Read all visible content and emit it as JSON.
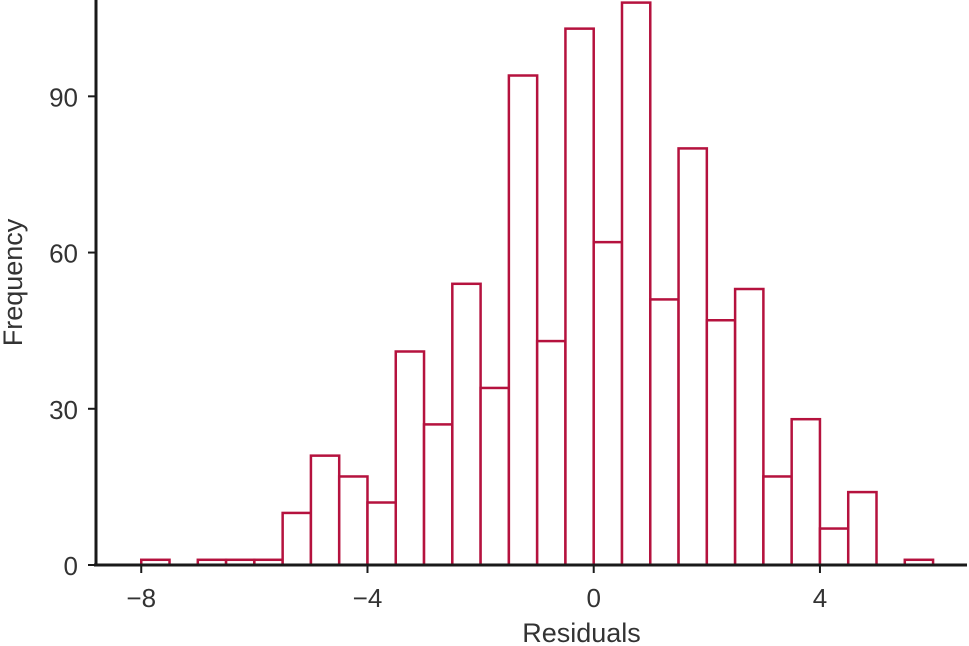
{
  "chart_data": {
    "type": "bar",
    "title": "",
    "xlabel": "Residuals",
    "ylabel": "Frequency",
    "bin_width": 0.5,
    "xlim": [
      -8.8,
      6.6
    ],
    "ylim": [
      0,
      108.5
    ],
    "x_ticks": [
      -8,
      -4,
      0,
      4
    ],
    "x_tick_labels": [
      "−8",
      "−4",
      "0",
      "4"
    ],
    "y_ticks": [
      0,
      30,
      60,
      90
    ],
    "y_tick_labels": [
      "0",
      "30",
      "60",
      "90"
    ],
    "bar_color": "#B5123E",
    "bar_fill": "#FFFFFF",
    "grid": false,
    "bins": [
      {
        "x0": -8.0,
        "count": 1
      },
      {
        "x0": -7.5,
        "count": 0
      },
      {
        "x0": -7.0,
        "count": 1
      },
      {
        "x0": -6.5,
        "count": 1
      },
      {
        "x0": -6.0,
        "count": 1
      },
      {
        "x0": -5.5,
        "count": 10
      },
      {
        "x0": -5.0,
        "count": 21
      },
      {
        "x0": -4.5,
        "count": 17
      },
      {
        "x0": -4.0,
        "count": 12
      },
      {
        "x0": -3.5,
        "count": 41
      },
      {
        "x0": -3.0,
        "count": 27
      },
      {
        "x0": -2.5,
        "count": 54
      },
      {
        "x0": -2.0,
        "count": 34
      },
      {
        "x0": -1.5,
        "count": 94
      },
      {
        "x0": -1.0,
        "count": 43
      },
      {
        "x0": -0.5,
        "count": 103
      },
      {
        "x0": 0.0,
        "count": 62
      },
      {
        "x0": 0.5,
        "count": 108
      },
      {
        "x0": 1.0,
        "count": 51
      },
      {
        "x0": 1.5,
        "count": 80
      },
      {
        "x0": 2.0,
        "count": 47
      },
      {
        "x0": 2.5,
        "count": 53
      },
      {
        "x0": 3.0,
        "count": 17
      },
      {
        "x0": 3.5,
        "count": 28
      },
      {
        "x0": 4.0,
        "count": 7
      },
      {
        "x0": 4.5,
        "count": 14
      },
      {
        "x0": 5.0,
        "count": 0
      },
      {
        "x0": 5.5,
        "count": 1
      }
    ]
  }
}
